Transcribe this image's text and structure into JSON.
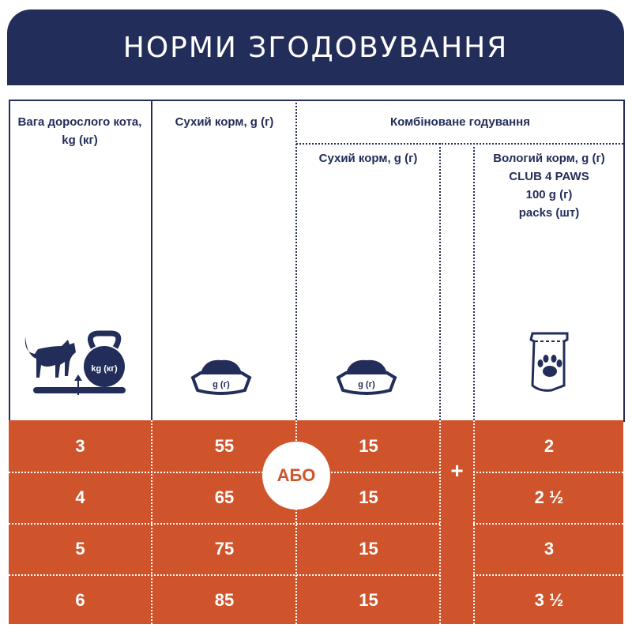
{
  "title": "НОРМИ ЗГОДОВУВАННЯ",
  "headers": {
    "weight": "Вага дорослого кота, kg (кг)",
    "dry": "Сухий корм, g (г)",
    "combined": "Комбіноване годування",
    "combined_dry": "Сухий корм, g (г)",
    "wet": [
      "Вологий корм, g (г)",
      "CLUB 4 PAWS",
      "100 g (г)",
      "packs (шт)"
    ]
  },
  "icons": {
    "weight": {
      "name": "cat-on-scale-kettlebell-icon",
      "label": "kg (кг)"
    },
    "dry": {
      "name": "food-bowl-icon",
      "label": "g (г)"
    },
    "combined_dry": {
      "name": "food-bowl-icon",
      "label": "g (г)"
    },
    "wet": {
      "name": "paw-pouch-icon"
    }
  },
  "or_label": "АБО",
  "plus_label": "+",
  "rows": [
    {
      "weight": "3",
      "dry": "55",
      "combined_dry": "15",
      "wet": "2"
    },
    {
      "weight": "4",
      "dry": "65",
      "combined_dry": "15",
      "wet": "2 ½"
    },
    {
      "weight": "5",
      "dry": "75",
      "combined_dry": "15",
      "wet": "3"
    },
    {
      "weight": "6",
      "dry": "85",
      "combined_dry": "15",
      "wet": "3 ½"
    }
  ],
  "colors": {
    "navy": "#232d5a",
    "orange": "#d0542b"
  }
}
